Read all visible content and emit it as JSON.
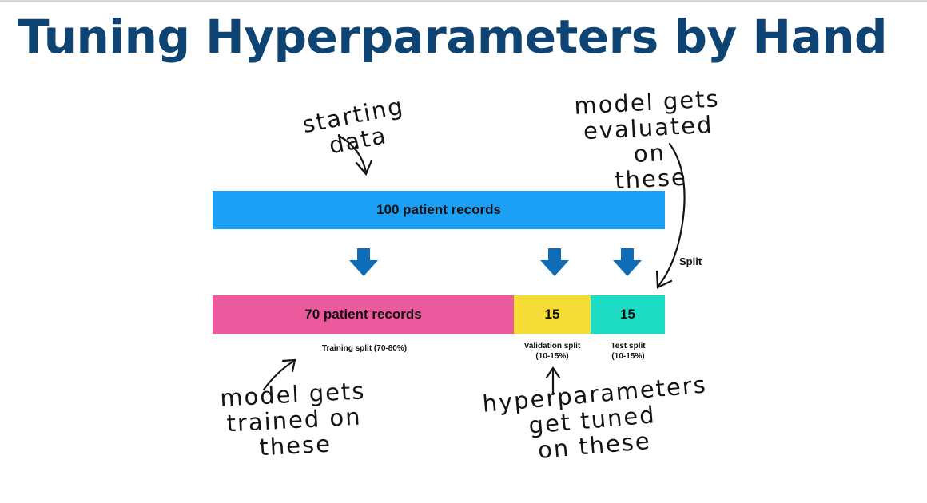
{
  "slide": {
    "title": "Tuning Hyperparameters by Hand"
  },
  "bars": {
    "full_label": "100 patient records",
    "split_label": "Split",
    "segments": [
      {
        "label": "70 patient records",
        "caption_line1": "Training split (70-80%)",
        "caption_line2": "",
        "color": "#ea5a9d"
      },
      {
        "label": "15",
        "caption_line1": "Validation split",
        "caption_line2": "(10-15%)",
        "color": "#f5dc36"
      },
      {
        "label": "15",
        "caption_line1": "Test split",
        "caption_line2": "(10-15%)",
        "color": "#1edcc4"
      }
    ],
    "full_color": "#1ba0f5",
    "arrow_color": "#0f6db8"
  },
  "annotations": {
    "starting": "starting data",
    "evaluated": [
      "model gets",
      "evaluated on",
      "these"
    ],
    "trained": [
      "model gets",
      "trained on",
      "these"
    ],
    "tuned": [
      "hyperparameters",
      "get tuned",
      "on these"
    ]
  },
  "colors": {
    "title": "#0e4474",
    "background": "#ffffff"
  }
}
